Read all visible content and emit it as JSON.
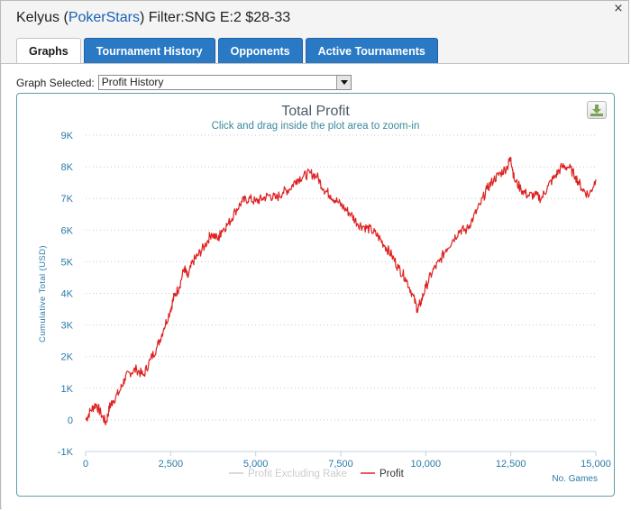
{
  "window": {
    "close_glyph": "×",
    "title": {
      "player": "Kelyus",
      "open_paren": " (",
      "site": "PokerStars",
      "close_and_filter": ") Filter:SNG E:2 $28-33"
    }
  },
  "tabs": [
    {
      "label": "Graphs",
      "active": true
    },
    {
      "label": "Tournament History",
      "active": false
    },
    {
      "label": "Opponents",
      "active": false
    },
    {
      "label": "Active Tournaments",
      "active": false
    }
  ],
  "graph_selector": {
    "label": "Graph Selected:",
    "value": "Profit History"
  },
  "colors": {
    "profit_line": "#dd2222",
    "rake_line": "#cccccc",
    "axis_text": "#2a7aa8",
    "title_text": "#4a5a6a",
    "subtitle_text": "#3a8a9a",
    "tab_blue": "#2979c4"
  },
  "icons": {
    "download": "download-icon"
  },
  "chart_data": {
    "type": "line",
    "title": "Total Profit",
    "subtitle": "Click and drag inside the plot area to zoom-in",
    "xlabel": "No. Games",
    "ylabel": "Cumulative Total (USD)",
    "xlim": [
      0,
      15000
    ],
    "ylim": [
      -1000,
      9000
    ],
    "x_ticks": [
      0,
      2500,
      5000,
      7500,
      10000,
      12500,
      15000
    ],
    "x_tick_labels": [
      "0",
      "2,500",
      "5,000",
      "7,500",
      "10,000",
      "12,500",
      "15,000"
    ],
    "y_ticks": [
      -1000,
      0,
      1000,
      2000,
      3000,
      4000,
      5000,
      6000,
      7000,
      8000,
      9000
    ],
    "y_tick_labels": [
      "-1K",
      "0",
      "1K",
      "2K",
      "3K",
      "4K",
      "5K",
      "6K",
      "7K",
      "8K",
      "9K"
    ],
    "grid": "horizontal-dotted",
    "legend": [
      "Profit Excluding Rake",
      "Profit"
    ],
    "legend_position": "bottom-center",
    "series": [
      {
        "name": "Profit",
        "x": [
          0,
          150,
          300,
          450,
          600,
          700,
          800,
          1000,
          1150,
          1300,
          1500,
          1700,
          1900,
          2100,
          2300,
          2500,
          2600,
          2750,
          2900,
          3000,
          3150,
          3300,
          3500,
          3700,
          3900,
          4000,
          4200,
          4400,
          4600,
          4800,
          5000,
          5200,
          5400,
          5600,
          5800,
          6000,
          6200,
          6400,
          6600,
          6800,
          7000,
          7200,
          7400,
          7600,
          7800,
          8000,
          8200,
          8400,
          8600,
          8800,
          9000,
          9200,
          9400,
          9600,
          9750,
          9850,
          10000,
          10200,
          10400,
          10600,
          10800,
          11000,
          11200,
          11400,
          11600,
          11800,
          12000,
          12200,
          12400,
          12500,
          12600,
          12800,
          13000,
          13200,
          13400,
          13600,
          13800,
          14000,
          14200,
          14400,
          14600,
          14800,
          15000
        ],
        "values": [
          0,
          300,
          500,
          200,
          -100,
          400,
          600,
          900,
          1300,
          1500,
          1600,
          1400,
          1900,
          2300,
          2900,
          3500,
          3900,
          4200,
          4800,
          4500,
          5000,
          5200,
          5500,
          5900,
          5700,
          6000,
          6200,
          6600,
          6900,
          7000,
          6900,
          7000,
          7100,
          7000,
          7200,
          7300,
          7600,
          7700,
          7800,
          7700,
          7300,
          7100,
          6900,
          6700,
          6500,
          6200,
          6100,
          6000,
          5800,
          5500,
          5200,
          4800,
          4500,
          4000,
          3500,
          3700,
          4200,
          4700,
          5000,
          5400,
          5700,
          6000,
          6000,
          6400,
          6800,
          7300,
          7600,
          7800,
          8000,
          8300,
          7600,
          7300,
          7100,
          7100,
          7000,
          7400,
          7700,
          8000,
          8000,
          7700,
          7300,
          7100,
          7600
        ]
      },
      {
        "name": "Profit Excluding Rake",
        "x": [],
        "values": []
      }
    ]
  }
}
